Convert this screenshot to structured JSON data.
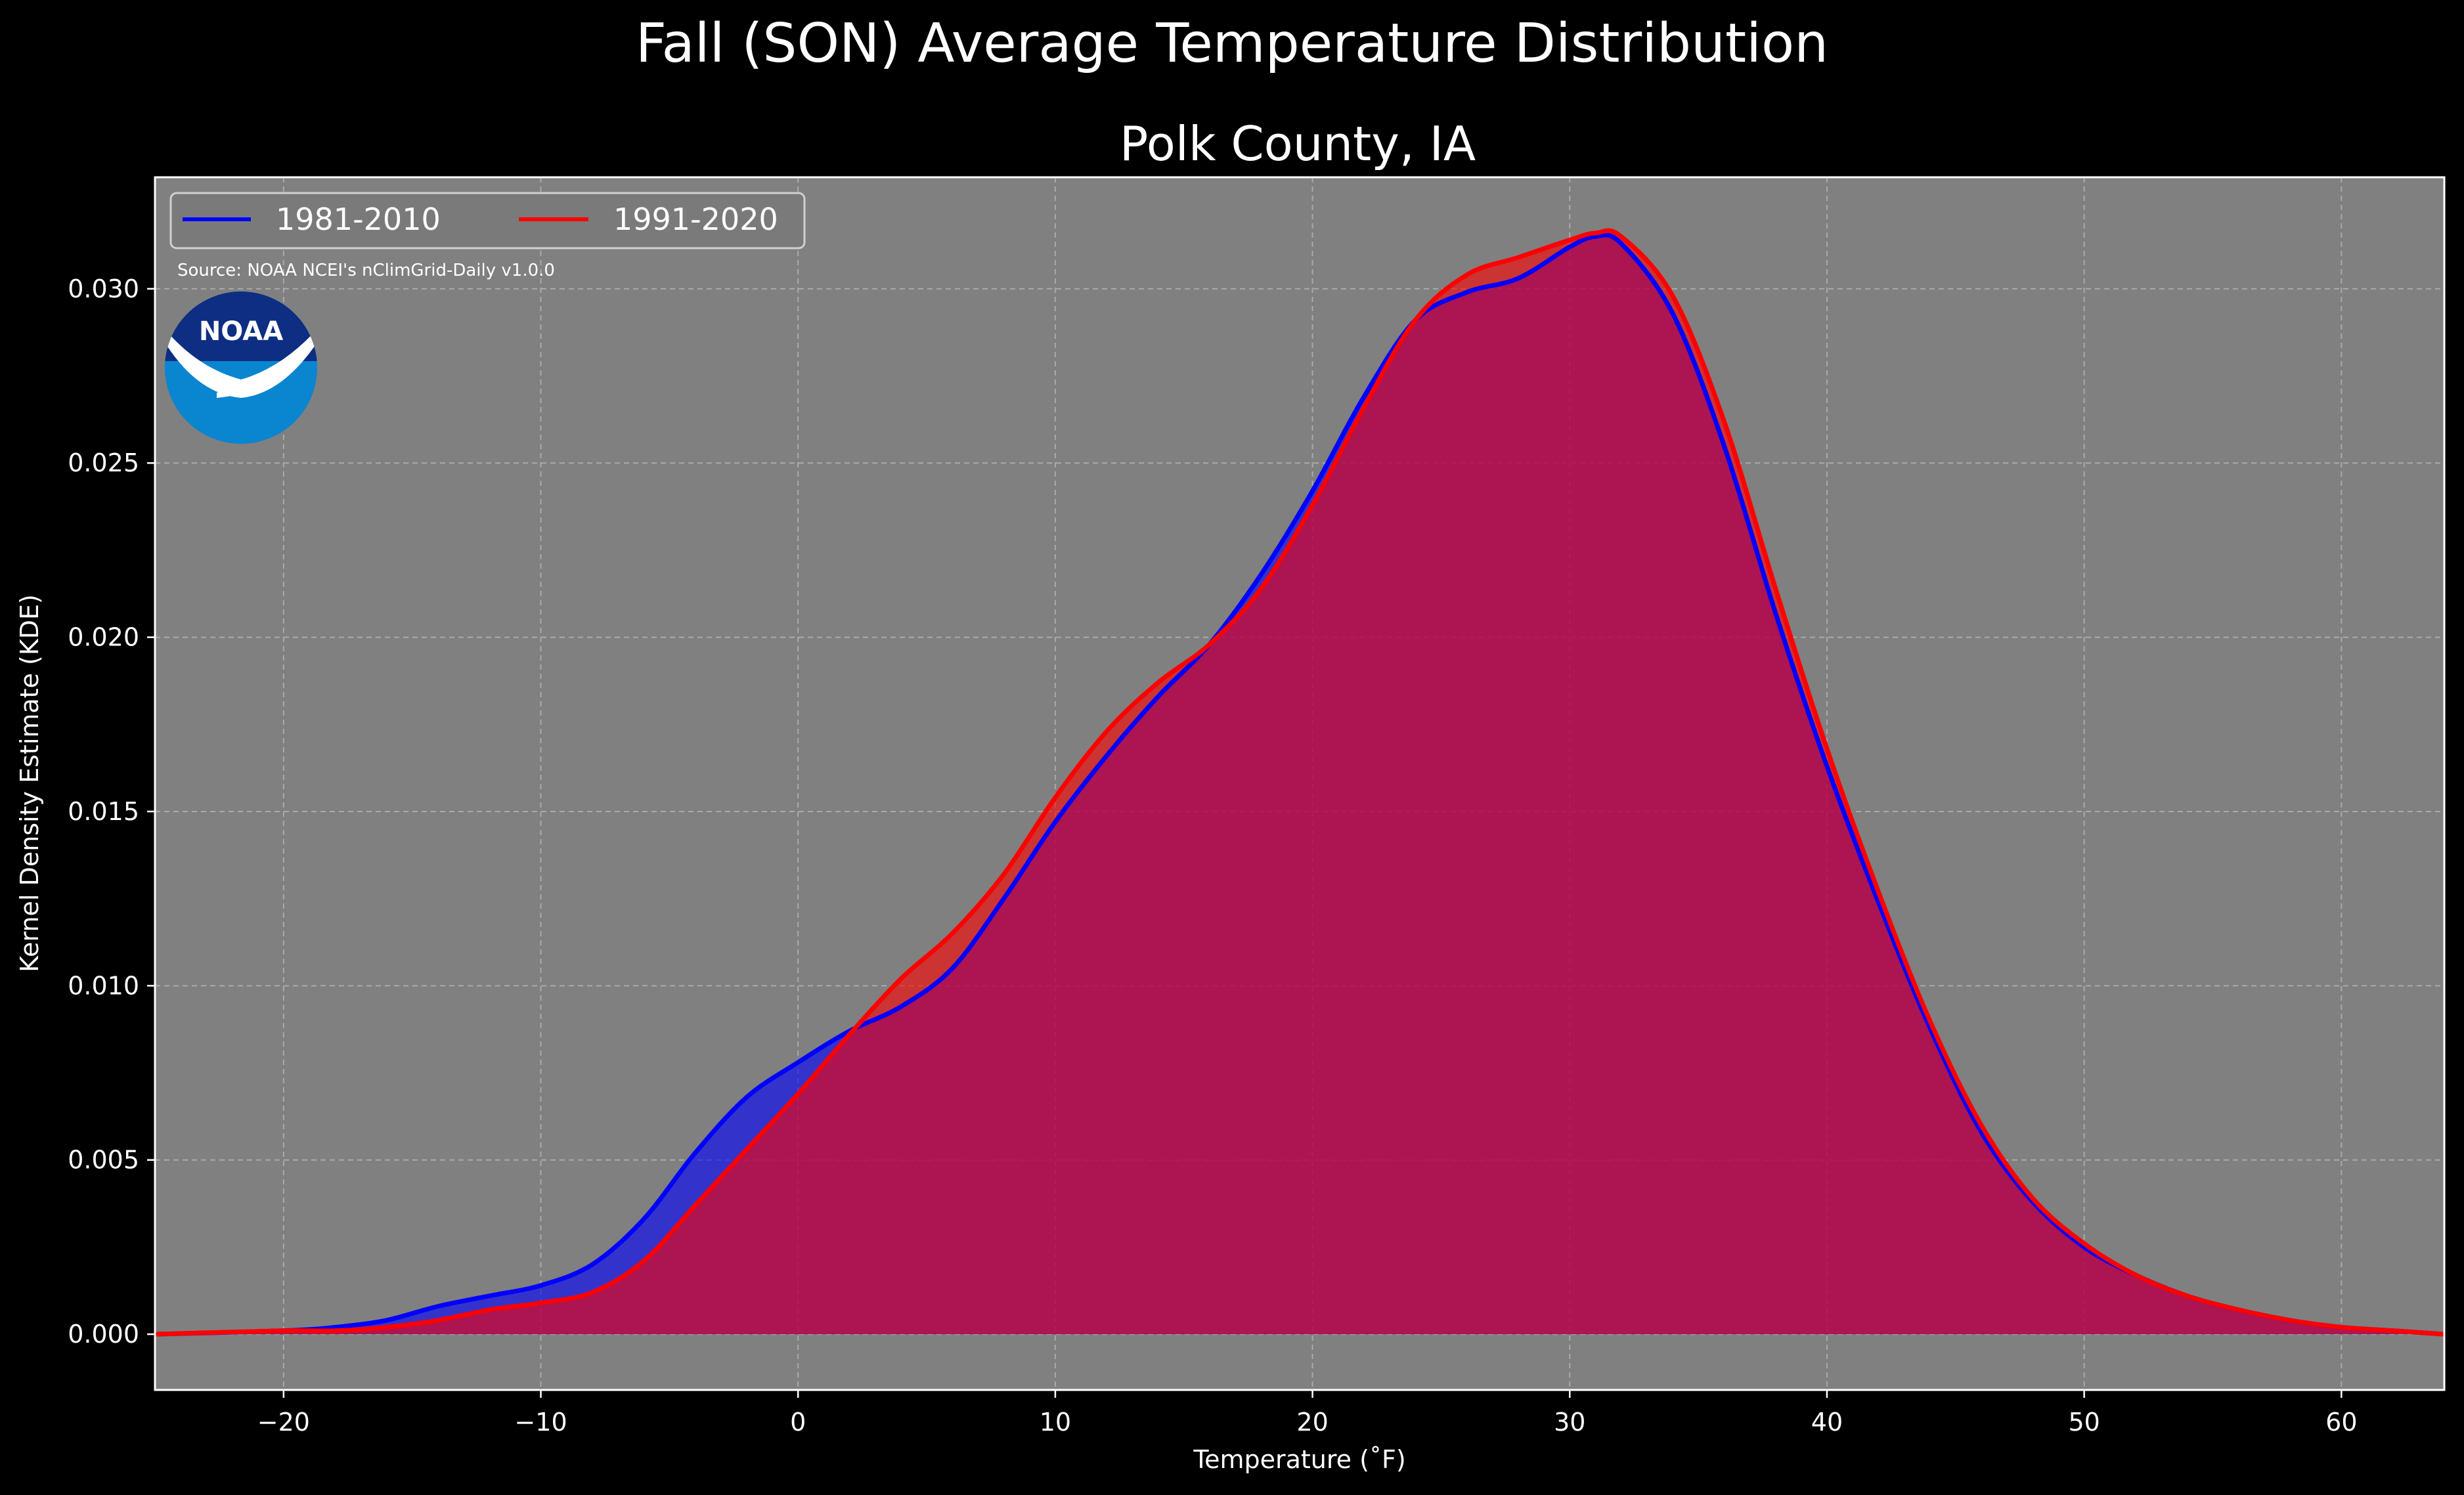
{
  "chart_data": {
    "type": "area",
    "title": "Fall (SON) Average Temperature Distribution",
    "subtitle": "Polk County, IA",
    "xlabel": "Temperature (˚F)",
    "ylabel": "Kernel Density Estimate (KDE)",
    "xlim": [
      -25,
      64
    ],
    "ylim": [
      -0.0016,
      0.0332
    ],
    "xticks": [
      -20,
      -10,
      0,
      10,
      20,
      30,
      40,
      50,
      60
    ],
    "xtick_labels": [
      "−20",
      "−10",
      "0",
      "10",
      "20",
      "30",
      "40",
      "50",
      "60"
    ],
    "yticks": [
      0.0,
      0.005,
      0.01,
      0.015,
      0.02,
      0.025,
      0.03
    ],
    "ytick_labels": [
      "0.000",
      "0.005",
      "0.010",
      "0.015",
      "0.020",
      "0.025",
      "0.030"
    ],
    "grid": true,
    "legend_position": "top-left",
    "source_note": "Source: NOAA NCEI's nClimGrid-Daily v1.0.0",
    "logo_text": "NOAA",
    "background_color": "#000000",
    "plot_background_color": "#808080",
    "series": [
      {
        "name": "1981-2010",
        "color": "#0000ff",
        "x": [
          -25,
          -20,
          -18,
          -16,
          -14,
          -12,
          -10,
          -8,
          -6,
          -4,
          -2,
          0,
          2,
          4,
          6,
          8,
          10,
          12,
          14,
          16,
          18,
          20,
          22,
          24,
          26,
          28,
          30,
          31,
          32,
          34,
          36,
          38,
          40,
          42,
          44,
          46,
          48,
          50,
          52,
          54,
          56,
          58,
          60,
          62,
          64
        ],
        "y": [
          0.0,
          0.0001,
          0.0002,
          0.0004,
          0.0008,
          0.0011,
          0.0014,
          0.002,
          0.0033,
          0.0052,
          0.0068,
          0.0078,
          0.0087,
          0.0094,
          0.0105,
          0.0125,
          0.0147,
          0.0166,
          0.0183,
          0.0198,
          0.0218,
          0.0242,
          0.0269,
          0.0291,
          0.0299,
          0.0303,
          0.0312,
          0.0315,
          0.0313,
          0.0293,
          0.0255,
          0.0207,
          0.0163,
          0.0124,
          0.0088,
          0.0058,
          0.0038,
          0.0025,
          0.0017,
          0.0011,
          0.0007,
          0.0004,
          0.0002,
          0.0001,
          0.0
        ]
      },
      {
        "name": "1991-2020",
        "color": "#ff0000",
        "x": [
          -25,
          -20,
          -18,
          -16,
          -14,
          -12,
          -10,
          -8,
          -6,
          -4,
          -2,
          0,
          2,
          4,
          6,
          8,
          10,
          12,
          14,
          16,
          18,
          20,
          22,
          24,
          26,
          28,
          30,
          31,
          32,
          34,
          36,
          38,
          40,
          42,
          44,
          46,
          48,
          50,
          52,
          54,
          56,
          58,
          60,
          62,
          64
        ],
        "y": [
          0.0,
          0.0001,
          0.0001,
          0.0002,
          0.0004,
          0.0007,
          0.0009,
          0.0012,
          0.0021,
          0.0037,
          0.0053,
          0.0069,
          0.0086,
          0.0102,
          0.0115,
          0.0132,
          0.0154,
          0.0173,
          0.0187,
          0.0198,
          0.0214,
          0.0238,
          0.0266,
          0.0291,
          0.0304,
          0.0309,
          0.0314,
          0.0316,
          0.0315,
          0.0298,
          0.0262,
          0.0214,
          0.0168,
          0.0127,
          0.009,
          0.006,
          0.0039,
          0.0026,
          0.0017,
          0.0011,
          0.0007,
          0.0004,
          0.0002,
          0.0001,
          0.0
        ]
      }
    ]
  }
}
